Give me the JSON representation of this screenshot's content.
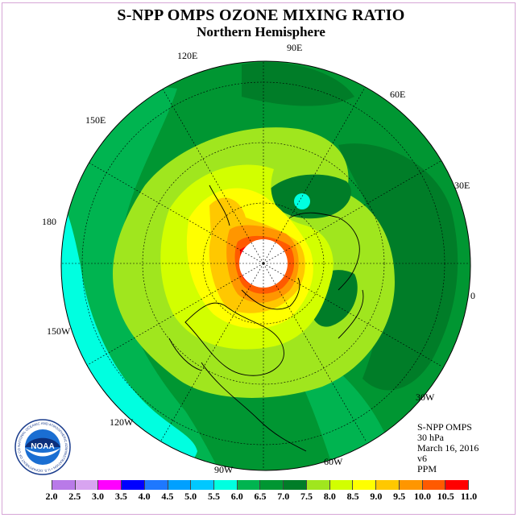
{
  "title": "S-NPP OMPS OZONE MIXING RATIO",
  "subtitle": "Northern Hemisphere",
  "longitude_labels": {
    "e90": "90E",
    "e60": "60E",
    "e30": "30E",
    "e0": "0",
    "w30": "30W",
    "w60": "60W",
    "w90": "90W",
    "w120": "120W",
    "w150": "150W",
    "d180": "180",
    "e150": "150E",
    "e120": "120E"
  },
  "info": {
    "instrument": "S-NPP OMPS",
    "pressure": "30 hPa",
    "date": "March 16, 2016",
    "version": "v6",
    "units": "PPM"
  },
  "logo": {
    "text": "NOAA",
    "ring_text": "NATIONAL OCEANIC AND ATMOSPHERIC ADMINISTRATION • U.S. DEPARTMENT OF COMMERCE"
  },
  "colorbar": {
    "ticks": [
      "2.0",
      "2.5",
      "3.0",
      "3.5",
      "4.0",
      "4.5",
      "5.0",
      "5.5",
      "6.0",
      "6.5",
      "7.0",
      "7.5",
      "8.0",
      "8.5",
      "9.0",
      "9.5",
      "10.0",
      "10.5",
      "11.0"
    ],
    "colors": [
      "#b97ae8",
      "#d8a4f0",
      "#ff00ff",
      "#0000ff",
      "#1e78ff",
      "#00a0ff",
      "#00c8ff",
      "#00ffe0",
      "#00b450",
      "#009632",
      "#007d28",
      "#a0e61e",
      "#d2ff00",
      "#ffff00",
      "#ffc800",
      "#ff9600",
      "#ff5a00",
      "#ff0000",
      "#8c3c28"
    ]
  },
  "map_colors": {
    "c60": "#00b450",
    "c65": "#009632",
    "c70": "#007d28",
    "c55": "#00ffe0",
    "c75": "#a0e61e",
    "c80": "#d2ff00",
    "c85": "#ffff00",
    "c90": "#ffc800",
    "c95": "#ff9600",
    "c100": "#ff5a00",
    "c105": "#ff0000"
  }
}
